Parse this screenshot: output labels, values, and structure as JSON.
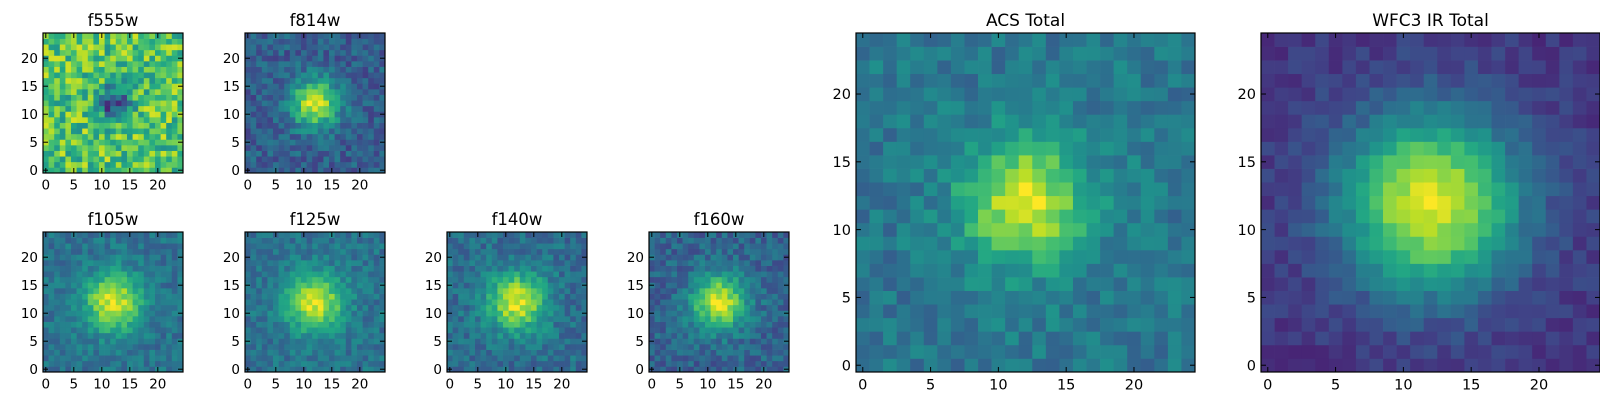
{
  "chart_data": [
    {
      "type": "heatmap",
      "title": "f555w",
      "grid_size": 25,
      "colormap": "viridis",
      "peak": [
        12,
        12
      ],
      "sigma": 2.0,
      "peak_level": 0.15,
      "background": 0.72,
      "noise": 0.22,
      "seed": 11,
      "xticks": [
        "0",
        "5",
        "10",
        "15",
        "20"
      ],
      "yticks": [
        "0",
        "5",
        "10",
        "15",
        "20"
      ]
    },
    {
      "type": "heatmap",
      "title": "f814w",
      "grid_size": 25,
      "colormap": "viridis",
      "peak": [
        12,
        12
      ],
      "sigma": 3.0,
      "peak_level": 0.95,
      "background": 0.3,
      "noise": 0.12,
      "seed": 23,
      "xticks": [
        "0",
        "5",
        "10",
        "15",
        "20"
      ],
      "yticks": [
        "0",
        "5",
        "10",
        "15",
        "20"
      ]
    },
    {
      "type": "heatmap",
      "title": "f105w",
      "grid_size": 25,
      "colormap": "viridis",
      "peak": [
        12,
        12
      ],
      "sigma": 3.6,
      "peak_level": 0.95,
      "background": 0.38,
      "noise": 0.1,
      "seed": 31,
      "xticks": [
        "0",
        "5",
        "10",
        "15",
        "20"
      ],
      "yticks": [
        "0",
        "5",
        "10",
        "15",
        "20"
      ]
    },
    {
      "type": "heatmap",
      "title": "f125w",
      "grid_size": 25,
      "colormap": "viridis",
      "peak": [
        12,
        12
      ],
      "sigma": 3.6,
      "peak_level": 0.95,
      "background": 0.38,
      "noise": 0.1,
      "seed": 47,
      "xticks": [
        "0",
        "5",
        "10",
        "15",
        "20"
      ],
      "yticks": [
        "0",
        "5",
        "10",
        "15",
        "20"
      ]
    },
    {
      "type": "heatmap",
      "title": "f140w",
      "grid_size": 25,
      "colormap": "viridis",
      "peak": [
        12,
        12
      ],
      "sigma": 3.6,
      "peak_level": 0.95,
      "background": 0.36,
      "noise": 0.11,
      "seed": 53,
      "xticks": [
        "0",
        "5",
        "10",
        "15",
        "20"
      ],
      "yticks": [
        "0",
        "5",
        "10",
        "15",
        "20"
      ]
    },
    {
      "type": "heatmap",
      "title": "f160w",
      "grid_size": 25,
      "colormap": "viridis",
      "peak": [
        12,
        12
      ],
      "sigma": 3.4,
      "peak_level": 0.95,
      "background": 0.32,
      "noise": 0.11,
      "seed": 67,
      "xticks": [
        "0",
        "5",
        "10",
        "15",
        "20"
      ],
      "yticks": [
        "0",
        "5",
        "10",
        "15",
        "20"
      ]
    },
    {
      "type": "heatmap",
      "title": "ACS Total",
      "grid_size": 25,
      "colormap": "viridis",
      "peak": [
        12,
        12
      ],
      "sigma": 3.2,
      "peak_level": 0.95,
      "background": 0.4,
      "noise": 0.1,
      "seed": 79,
      "xticks": [
        "0",
        "5",
        "10",
        "15",
        "20"
      ],
      "yticks": [
        "0",
        "5",
        "10",
        "15",
        "20"
      ]
    },
    {
      "type": "heatmap",
      "title": "WFC3 IR Total",
      "grid_size": 25,
      "colormap": "viridis",
      "peak": [
        12,
        12
      ],
      "sigma": 4.6,
      "peak_level": 0.95,
      "background": 0.16,
      "noise": 0.06,
      "seed": 97,
      "xticks": [
        "0",
        "5",
        "10",
        "15",
        "20"
      ],
      "yticks": [
        "0",
        "5",
        "10",
        "15",
        "20"
      ]
    }
  ]
}
